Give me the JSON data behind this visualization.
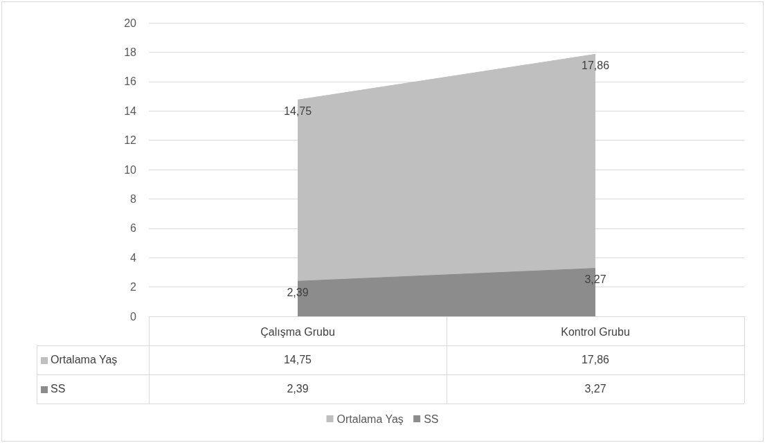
{
  "chart_data": {
    "type": "area",
    "categories": [
      "Çalışma Grubu",
      "Kontrol Grubu"
    ],
    "series": [
      {
        "name": "Ortalama Yaş",
        "color": "#bfbfbf",
        "values": [
          14.75,
          17.86
        ],
        "value_labels": [
          "14,75",
          "17,86"
        ]
      },
      {
        "name": "SS",
        "color": "#8c8c8c",
        "values": [
          2.39,
          3.27
        ],
        "value_labels": [
          "2,39",
          "3,27"
        ]
      }
    ],
    "ylim": [
      0,
      20
    ],
    "yticks": [
      0,
      2,
      4,
      6,
      8,
      10,
      12,
      14,
      16,
      18,
      20
    ],
    "grid": "y",
    "legend": "bottom",
    "marker": "none"
  }
}
